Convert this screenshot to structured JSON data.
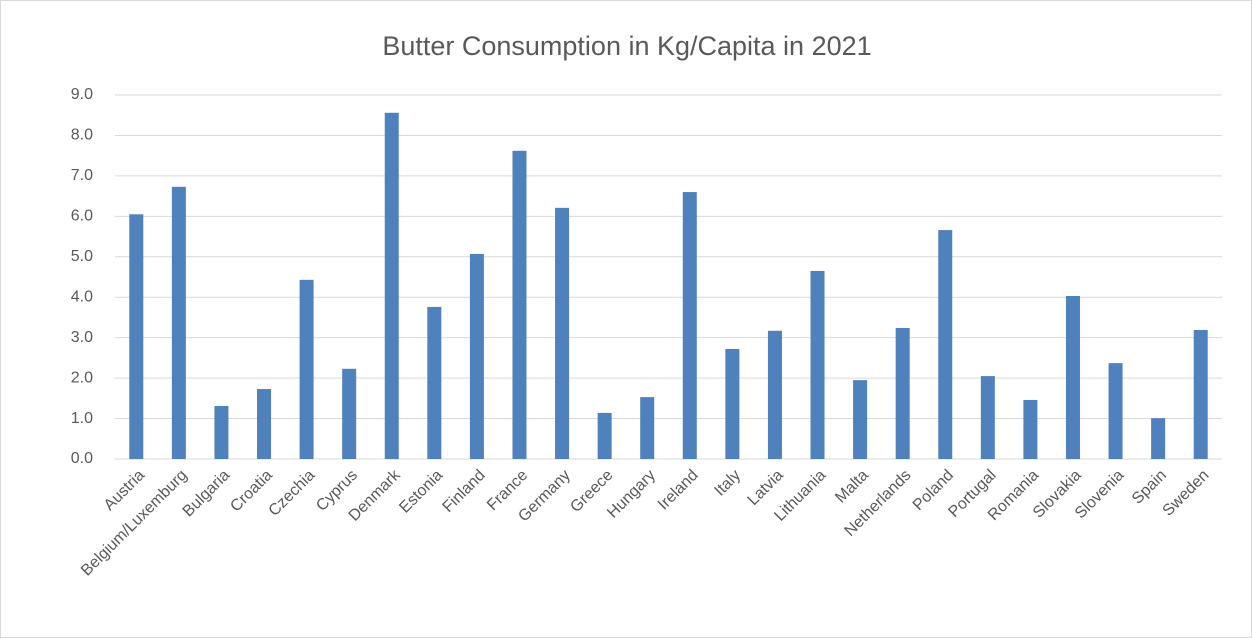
{
  "chart_data": {
    "type": "bar",
    "title": "Butter Consumption in Kg/Capita in 2021",
    "categories": [
      "Austria",
      "Belgium/Luxemburg",
      "Bulgaria",
      "Croatia",
      "Czechia",
      "Cyprus",
      "Denmark",
      "Estonia",
      "Finland",
      "France",
      "Germany",
      "Greece",
      "Hungary",
      "Ireland",
      "Italy",
      "Latvia",
      "Lithuania",
      "Malta",
      "Netherlands",
      "Poland",
      "Portugal",
      "Romania",
      "Slovakia",
      "Slovenia",
      "Spain",
      "Sweden"
    ],
    "values": [
      6.05,
      6.73,
      1.31,
      1.73,
      4.43,
      2.23,
      8.56,
      3.76,
      5.07,
      7.62,
      6.21,
      1.14,
      1.53,
      6.6,
      2.72,
      3.17,
      4.65,
      1.95,
      3.24,
      5.66,
      2.05,
      1.46,
      4.03,
      2.37,
      1.01,
      3.19
    ],
    "color": "#4f81bd",
    "ylim": [
      0,
      9
    ],
    "yticks": [
      {
        "value": 0,
        "label": "0.0"
      },
      {
        "value": 1,
        "label": "1.0"
      },
      {
        "value": 2,
        "label": "2.0"
      },
      {
        "value": 3,
        "label": "3.0"
      },
      {
        "value": 4,
        "label": "4.0"
      },
      {
        "value": 5,
        "label": "5.0"
      },
      {
        "value": 6,
        "label": "6.0"
      },
      {
        "value": 7,
        "label": "7.0"
      },
      {
        "value": 8,
        "label": "8.0"
      },
      {
        "value": 9,
        "label": "9.0"
      }
    ],
    "grid": true
  }
}
